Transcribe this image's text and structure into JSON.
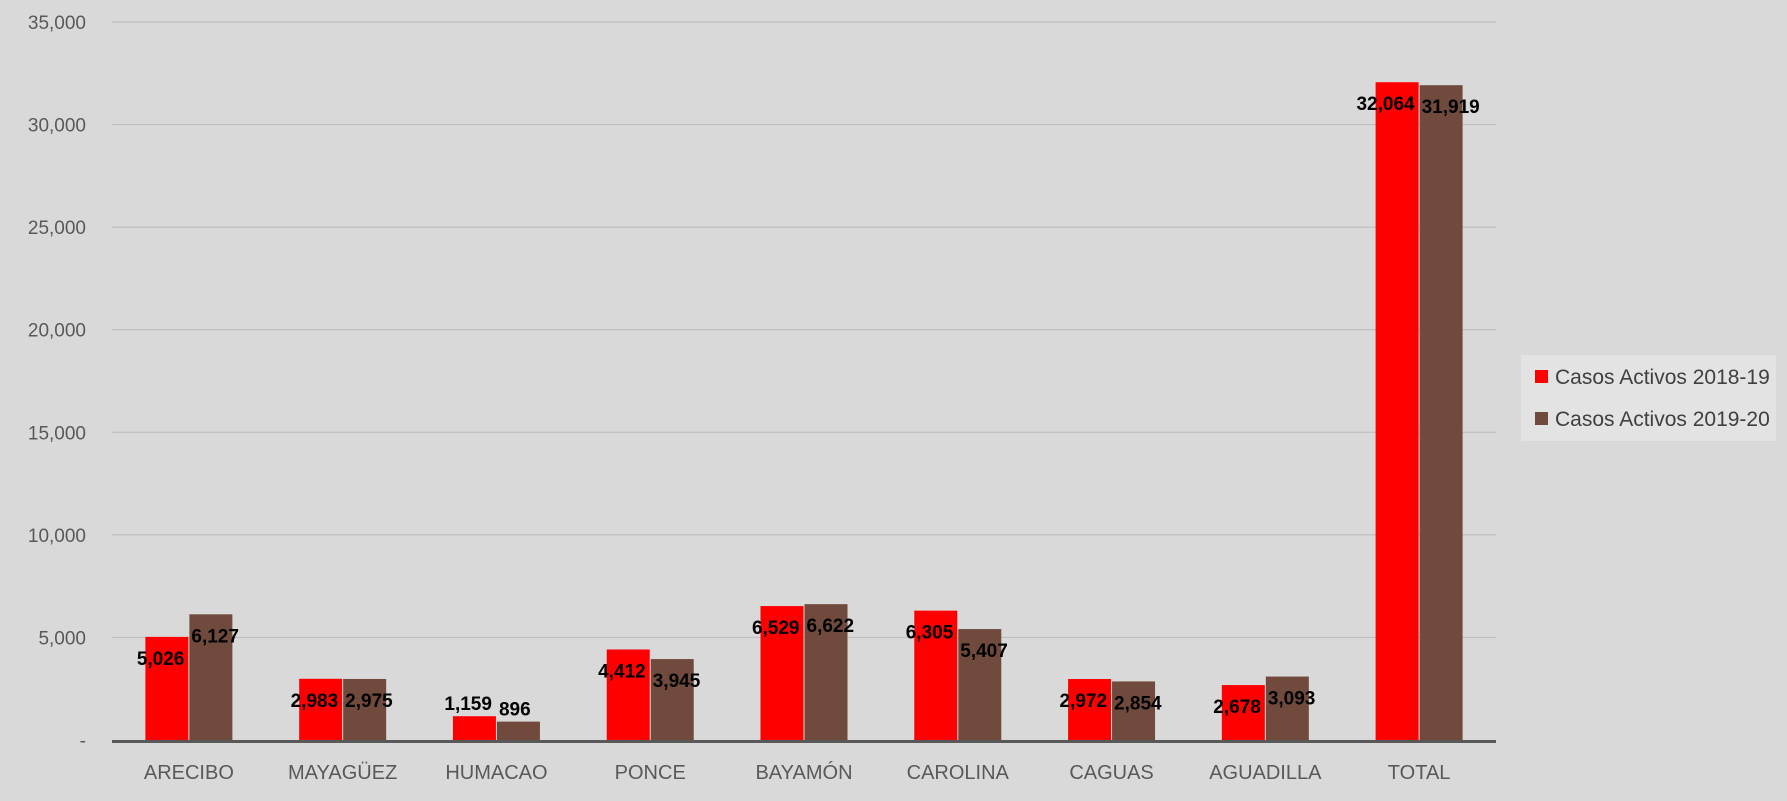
{
  "chart_data": {
    "type": "bar",
    "title": "",
    "xlabel": "",
    "ylabel": "",
    "ylim": [
      0,
      35000
    ],
    "yticks": [
      0,
      5000,
      10000,
      15000,
      20000,
      25000,
      30000,
      35000
    ],
    "ytick_labels": [
      "-",
      "5,000",
      "10,000",
      "15,000",
      "20,000",
      "25,000",
      "30,000",
      "35,000"
    ],
    "grid": true,
    "legend_position": "right",
    "categories": [
      "ARECIBO",
      "MAYAGÜEZ",
      "HUMACAO",
      "PONCE",
      "BAYAMÓN",
      "CAROLINA",
      "CAGUAS",
      "AGUADILLA",
      "TOTAL"
    ],
    "series": [
      {
        "name": "Casos Activos 2018-19",
        "color": "#ff0000",
        "values": [
          5026,
          2983,
          1159,
          4412,
          6529,
          6305,
          2972,
          2678,
          32064
        ],
        "labels": [
          "5,026",
          "2,983",
          "1,159",
          "4,412",
          "6,529",
          "6,305",
          "2,972",
          "2,678",
          "32,064"
        ]
      },
      {
        "name": "Casos Activos 2019-20",
        "color": "#704a3c",
        "values": [
          6127,
          2975,
          896,
          3945,
          6622,
          5407,
          2854,
          3093,
          31919
        ],
        "labels": [
          "6,127",
          "2,975",
          "896",
          "3,945",
          "6,622",
          "5,407",
          "2,854",
          "3,093",
          "31,919"
        ]
      }
    ]
  }
}
